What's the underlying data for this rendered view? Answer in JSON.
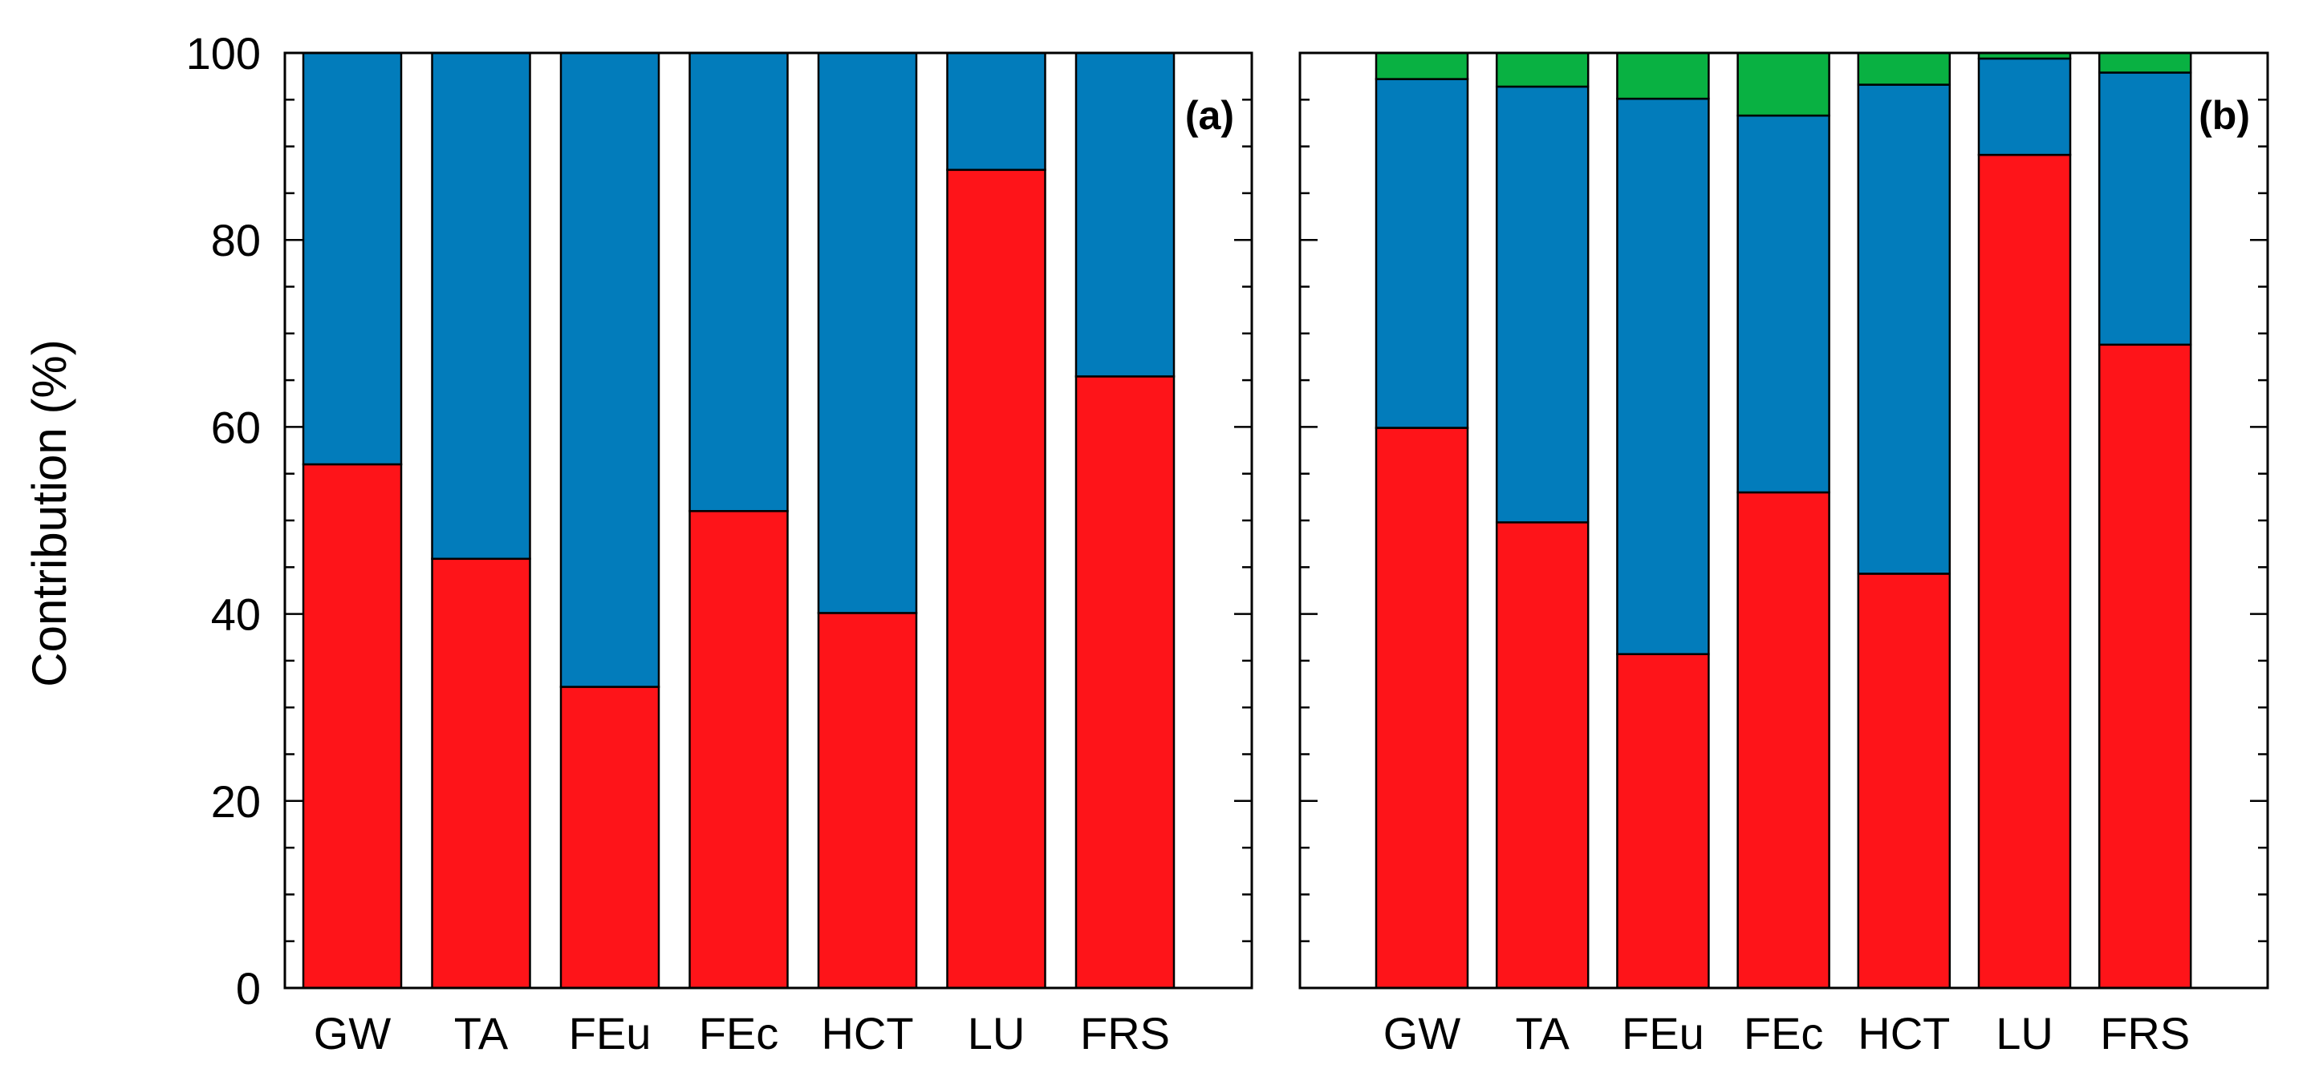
{
  "colors": {
    "red": "#fe1419",
    "blue": "#027cbb",
    "green": "#09b142",
    "frame": "#000000"
  },
  "chart_data": {
    "ylabel": "Contribution (%)",
    "ylim": [
      0,
      100
    ],
    "yticks": [
      0,
      20,
      40,
      60,
      80,
      100
    ],
    "panels": [
      {
        "type": "bar",
        "stacked": true,
        "panel_label": "(a)",
        "categories": [
          "GW",
          "TA",
          "FEu",
          "FEc",
          "HCT",
          "LU",
          "FRS"
        ],
        "series": [
          {
            "color_key": "red",
            "values": [
              56.0,
              45.9,
              32.2,
              51.0,
              40.1,
              87.5,
              65.4
            ]
          },
          {
            "color_key": "blue",
            "values": [
              44.0,
              54.1,
              67.8,
              49.0,
              59.9,
              12.5,
              34.6
            ]
          }
        ]
      },
      {
        "type": "bar",
        "stacked": true,
        "panel_label": "(b)",
        "categories": [
          "GW",
          "TA",
          "FEu",
          "FEc",
          "HCT",
          "LU",
          "FRS"
        ],
        "series": [
          {
            "color_key": "red",
            "values": [
              59.9,
              49.8,
              35.7,
              53.0,
              44.3,
              89.1,
              68.8
            ]
          },
          {
            "color_key": "blue",
            "values": [
              37.3,
              46.6,
              59.4,
              40.3,
              52.3,
              10.3,
              29.1
            ]
          },
          {
            "color_key": "green",
            "values": [
              2.8,
              3.6,
              4.9,
              6.7,
              3.4,
              0.6,
              2.1
            ]
          }
        ]
      }
    ]
  }
}
